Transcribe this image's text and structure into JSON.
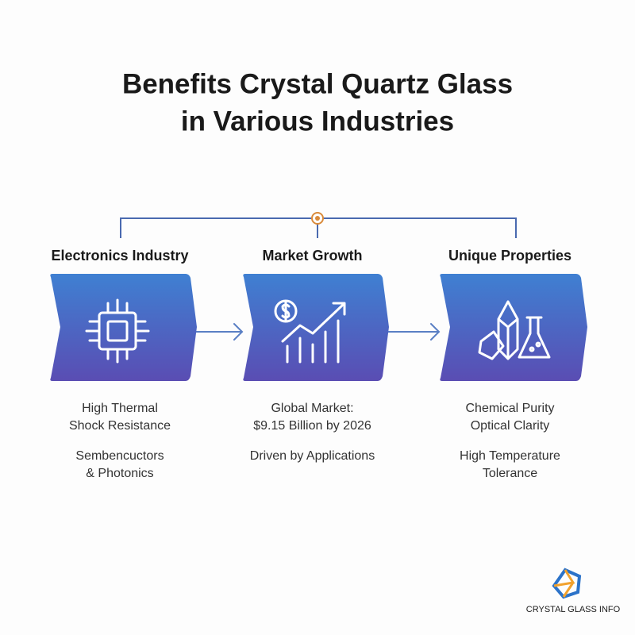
{
  "header": {
    "title": [
      "Benefits Crystal Quartz Glass",
      "in Various Industries"
    ]
  },
  "columns": [
    {
      "heading": "Electronics Industry",
      "paragraphs": [
        [
          "High Thermal",
          "Shock Resistance"
        ],
        [
          "Sembencuctors",
          "& Photonics"
        ]
      ]
    },
    {
      "heading": "Market Growth",
      "paragraphs": [
        [
          "Global Market:",
          "$9.15 Billion by 2026"
        ],
        [
          "Driven by Applications"
        ]
      ]
    },
    {
      "heading": "Unique Properties",
      "paragraphs": [
        [
          "Chemical Purity",
          "Optical Clarity"
        ],
        [
          "High Temperature",
          "Tolerance"
        ]
      ]
    }
  ],
  "logo": {
    "text": "CRYSTAL GLASS INFO"
  }
}
